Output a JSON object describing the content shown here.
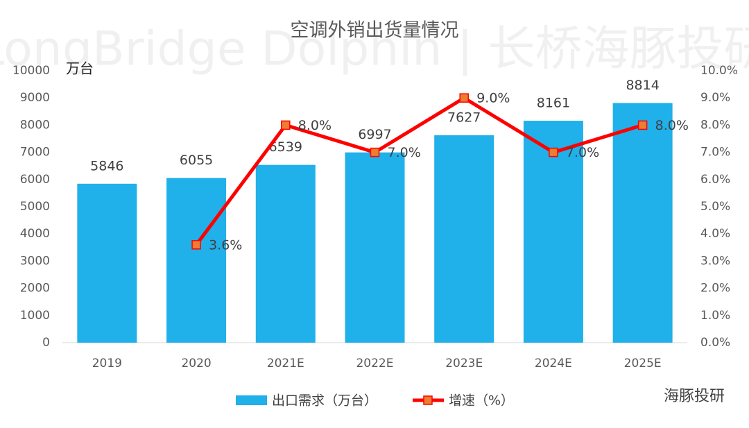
{
  "chart_data": {
    "type": "bar",
    "title": "空调外销出货量情况",
    "y_unit_label": "万台",
    "watermark": "LongBridge Dolphin | 长桥海豚投研",
    "source": "海豚投研",
    "categories": [
      "2019",
      "2020",
      "2021E",
      "2022E",
      "2023E",
      "2024E",
      "2025E"
    ],
    "series": [
      {
        "name": "出口需求（万台）",
        "type": "bar",
        "color": "#20b0ea",
        "values": [
          5846,
          6055,
          6539,
          6997,
          7627,
          8161,
          8814
        ]
      },
      {
        "name": "增速（%）",
        "type": "line",
        "axis": "y2",
        "color": "#ff0000",
        "marker_color": "#ed7d31",
        "values": [
          null,
          3.6,
          8.0,
          7.0,
          9.0,
          7.0,
          8.0
        ],
        "value_labels": [
          null,
          "3.6%",
          "8.0%",
          "7.0%",
          "9.0%",
          "7.0%",
          "8.0%"
        ]
      }
    ],
    "ylim": [
      0,
      10000
    ],
    "yticks": [
      0,
      1000,
      2000,
      3000,
      4000,
      5000,
      6000,
      7000,
      8000,
      9000,
      10000
    ],
    "y2lim": [
      0,
      10
    ],
    "y2ticks": [
      {
        "value": 0,
        "label": "0.0%"
      },
      {
        "value": 1,
        "label": "1.0%"
      },
      {
        "value": 2,
        "label": "2.0%"
      },
      {
        "value": 3,
        "label": "3.0%"
      },
      {
        "value": 4,
        "label": "4.0%"
      },
      {
        "value": 5,
        "label": "5.0%"
      },
      {
        "value": 6,
        "label": "6.0%"
      },
      {
        "value": 7,
        "label": "7.0%"
      },
      {
        "value": 8,
        "label": "8.0%"
      },
      {
        "value": 9,
        "label": "9.0%"
      },
      {
        "value": 10,
        "label": "10.0%"
      }
    ],
    "grid": false
  }
}
